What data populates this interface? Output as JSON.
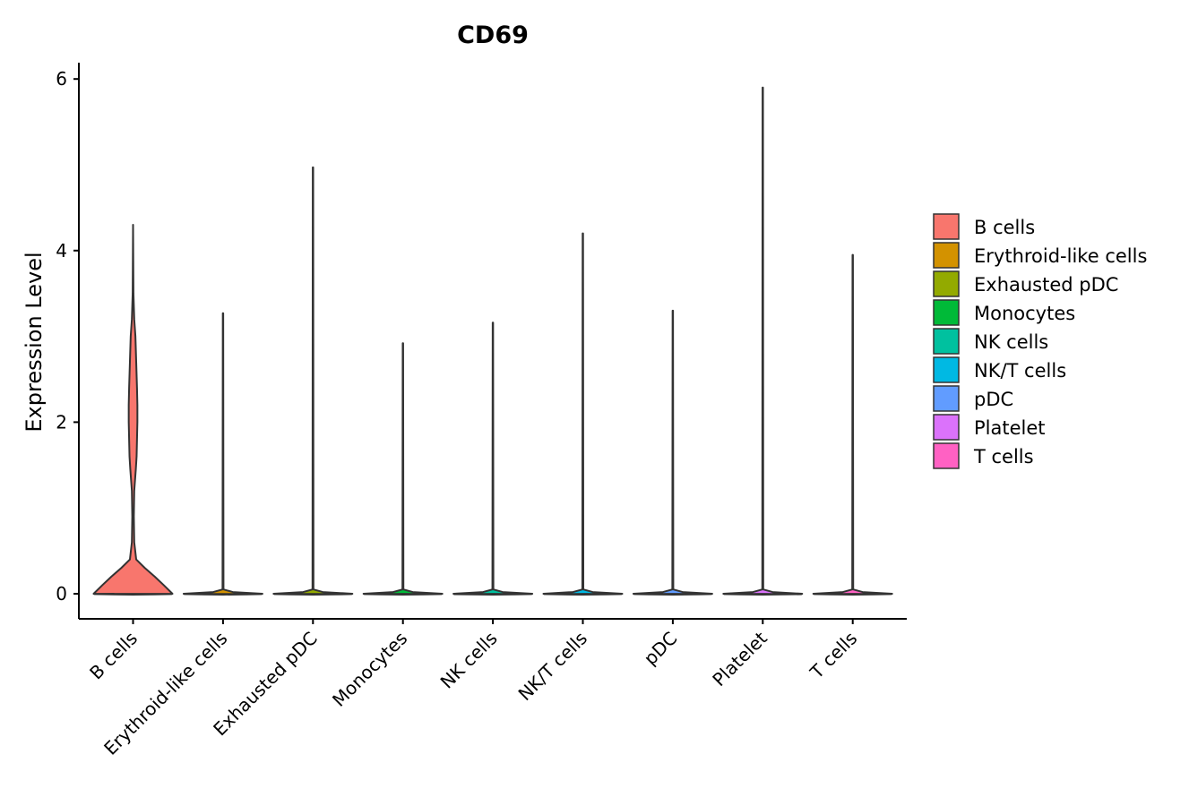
{
  "chart_data": {
    "type": "violin",
    "title": "CD69",
    "xlabel": "",
    "ylabel": "Expression Level",
    "ylim": [
      -0.3,
      6.2
    ],
    "yticks": [
      0,
      2,
      4,
      6
    ],
    "categories": [
      "B cells",
      "Erythroid-like cells",
      "Exhausted pDC",
      "Monocytes",
      "NK cells",
      "NK/T cells",
      "pDC",
      "Platelet",
      "T cells"
    ],
    "colors": [
      "#F8766D",
      "#D39200",
      "#93AA00",
      "#00BA38",
      "#00C19F",
      "#00B9E3",
      "#619CFF",
      "#DB72FB",
      "#FF61C3"
    ],
    "max_values": [
      4.3,
      3.27,
      4.97,
      2.92,
      3.16,
      4.2,
      3.3,
      5.9,
      3.95
    ],
    "b_cells_density": [
      [
        0,
        1.0
      ],
      [
        0.1,
        0.78
      ],
      [
        0.2,
        0.55
      ],
      [
        0.3,
        0.3
      ],
      [
        0.4,
        0.08
      ],
      [
        0.6,
        0.03
      ],
      [
        0.9,
        0.02
      ],
      [
        1.2,
        0.03
      ],
      [
        1.45,
        0.07
      ],
      [
        1.6,
        0.09
      ],
      [
        1.8,
        0.1
      ],
      [
        2.0,
        0.11
      ],
      [
        2.2,
        0.11
      ],
      [
        2.4,
        0.1
      ],
      [
        2.7,
        0.08
      ],
      [
        3.0,
        0.06
      ],
      [
        3.2,
        0.03
      ],
      [
        3.5,
        0.01
      ],
      [
        3.8,
        0.006
      ],
      [
        4.3,
        0.0
      ]
    ],
    "legend": {
      "position": "right",
      "entries": [
        "B cells",
        "Erythroid-like cells",
        "Exhausted pDC",
        "Monocytes",
        "NK cells",
        "NK/T cells",
        "pDC",
        "Platelet",
        "T cells"
      ]
    }
  }
}
